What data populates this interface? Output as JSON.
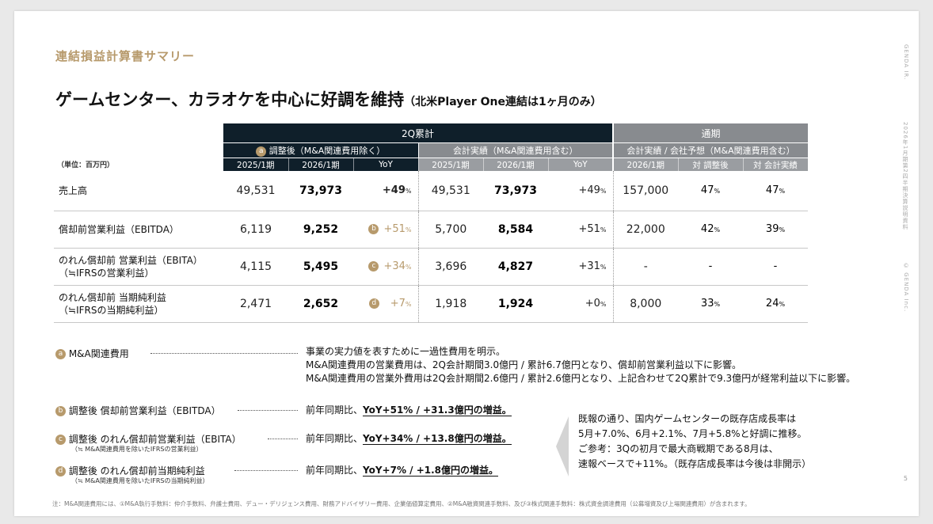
{
  "section_title": "連結損益計算書サマリー",
  "headline": {
    "main": "ゲームセンター、カラオケを中心に好調を維持",
    "sub": "（北米Player One連結は1ヶ月のみ）"
  },
  "side_text": {
    "brand": "GENDA IR.",
    "doc": "2026年1月期第2四半期決算説明資料",
    "copyright": "© GENDA Inc."
  },
  "table": {
    "unit": "（単位：百万円）",
    "group_2q": "2Q累計",
    "group_full": "通期",
    "sub_adjusted_badge": "a",
    "sub_adjusted": "調整後（M&A関連費用除く）",
    "sub_actual": "会計実績（M&A関連費用含む）",
    "sub_full": "会計実績 / 会社予想（M&A関連費用含む）",
    "col_headers": [
      "2025/1期",
      "2026/1期",
      "YoY",
      "2025/1期",
      "2026/1期",
      "YoY",
      "2026/1期",
      "対 調整後",
      "対 会計実績"
    ],
    "pct_unit": "%",
    "rows": [
      {
        "label1": "売上高",
        "label2": "",
        "adj_prev": "49,531",
        "adj_cur": "73,973",
        "adj_badge": "",
        "adj_yoy": "+49",
        "act_prev": "49,531",
        "act_cur": "73,973",
        "act_yoy": "+49",
        "full_cur": "157,000",
        "vs_adj": "47",
        "vs_act": "47"
      },
      {
        "label1": "償却前営業利益（EBITDA）",
        "label2": "",
        "adj_prev": "6,119",
        "adj_cur": "9,252",
        "adj_badge": "b",
        "adj_yoy": "+51",
        "act_prev": "5,700",
        "act_cur": "8,584",
        "act_yoy": "+51",
        "full_cur": "22,000",
        "vs_adj": "42",
        "vs_act": "39"
      },
      {
        "label1": "のれん償却前 営業利益（EBITA）",
        "label2": "（≒IFRSの営業利益）",
        "adj_prev": "4,115",
        "adj_cur": "5,495",
        "adj_badge": "c",
        "adj_yoy": "+34",
        "act_prev": "3,696",
        "act_cur": "4,827",
        "act_yoy": "+31",
        "full_cur": "-",
        "vs_adj": "-",
        "vs_act": "-"
      },
      {
        "label1": "のれん償却前 当期純利益",
        "label2": "（≒IFRSの当期純利益）",
        "adj_prev": "2,471",
        "adj_cur": "2,652",
        "adj_badge": "d",
        "adj_yoy": "+7",
        "act_prev": "1,918",
        "act_cur": "1,924",
        "act_yoy": "+0",
        "full_cur": "8,000",
        "vs_adj": "33",
        "vs_act": "24"
      }
    ]
  },
  "notes": {
    "a": {
      "badge": "a",
      "title": "M&A関連費用",
      "lines": [
        "事業の実力値を表すために一過性費用を明示。",
        "M&A関連費用の営業費用は、2Q会計期間3.0億円 / 累計6.7億円となり、償却前営業利益以下に影響。",
        "M&A関連費用の営業外費用は2Q会計期間2.6億円 / 累計2.6億円となり、上記合わせて2Q累計で9.3億円が経常利益以下に影響。"
      ]
    },
    "b": {
      "badge": "b",
      "title": "調整後 償却前営業利益（EBITDA）",
      "sub": "",
      "prefix": "前年同期比、",
      "highlight": "YoY+51% / +31.3億円の増益。"
    },
    "c": {
      "badge": "c",
      "title": "調整後 のれん償却前営業利益（EBITA）",
      "sub": "（≒ M&A関連費用を除いたIFRSの営業利益）",
      "prefix": "前年同期比、",
      "highlight": "YoY+34% / +13.8億円の増益。"
    },
    "d": {
      "badge": "d",
      "title": "調整後 のれん償却前当期純利益",
      "sub": "（≒ M&A関連費用を除いたIFRSの当期純利益）",
      "prefix": "前年同期比、",
      "highlight": "YoY+7% / +1.8億円の増益。"
    }
  },
  "callout": [
    "既報の通り、国内ゲームセンターの既存店成長率は",
    "5月+7.0%、6月+2.1%、7月+5.8%と好調に推移。",
    "ご参考：3Qの初月で最大商戦期である8月は、",
    "速報ベースで+11%。（既存店成長率は今後は非開示）"
  ],
  "footnote": "注：M&A関連費用には、①M&A執行手数料：仲介手数料、弁護士費用、デュー・デリジェンス費用、財務アドバイザリー費用、企業価値算定費用、②M&A融資関連手数料、及び③株式関連手数料：株式資金調達費用（公募増資及び上場関連費用）が含まれます。",
  "page_number": "5"
}
